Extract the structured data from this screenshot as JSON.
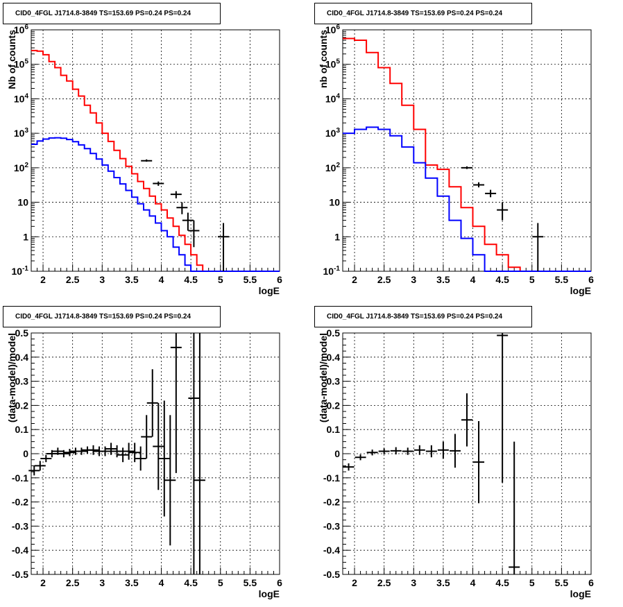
{
  "chart_data": [
    {
      "type": "line",
      "title": "CID0_4FGL J1714.8-3849 TS=153.69 PS=0.24 PS=0.24",
      "xlabel": "logE",
      "ylabel": "Nb of counts",
      "yscale": "log",
      "xlim": [
        1.8,
        6.0
      ],
      "ylim": [
        0.1,
        1000000
      ],
      "grid": true,
      "xticks": [
        "2",
        "2.5",
        "3",
        "3.5",
        "4",
        "4.5",
        "5",
        "5.5",
        "6"
      ],
      "yticks": [
        "10^-1",
        "1",
        "10",
        "10^2",
        "10^3",
        "10^4",
        "10^5",
        "10^6"
      ],
      "bin_edges": [
        1.8,
        1.9,
        2.0,
        2.1,
        2.2,
        2.3,
        2.4,
        2.5,
        2.6,
        2.7,
        2.8,
        2.9,
        3.0,
        3.1,
        3.2,
        3.3,
        3.4,
        3.5,
        3.6,
        3.7,
        3.8,
        3.9,
        4.0,
        4.1,
        4.2,
        4.3,
        4.4,
        4.5,
        4.6,
        4.7,
        4.8,
        4.9,
        5.0,
        5.1,
        5.2,
        5.3,
        5.4,
        5.5,
        5.6,
        5.7,
        5.8,
        5.9,
        6.0
      ],
      "series": [
        {
          "color": "#ff0000",
          "values": [
            250000,
            240000,
            190000,
            120000,
            80000,
            48000,
            33000,
            19000,
            12000,
            6500,
            3900,
            2000,
            1000,
            580,
            320,
            185,
            110,
            67,
            40,
            25,
            15,
            9,
            6,
            3.5,
            2,
            1.1,
            0.6,
            0.3,
            0.15,
            0.1,
            0.1,
            0.1,
            0.1,
            0.1,
            0.1,
            0.1,
            0.1,
            0.1,
            0.1,
            0.1,
            0.1,
            0.1
          ]
        },
        {
          "color": "#0000ff",
          "values": [
            480,
            600,
            680,
            730,
            740,
            720,
            660,
            570,
            460,
            360,
            260,
            180,
            120,
            80,
            52,
            34,
            22,
            14,
            9,
            6,
            4,
            2.5,
            1.5,
            1.0,
            0.5,
            0.3,
            0.15,
            0.1,
            0.1,
            0.1,
            0.1,
            0.1,
            0.1,
            0.1,
            0.1,
            0.1,
            0.1,
            0.1,
            0.1,
            0.1,
            0.1,
            0.1
          ]
        }
      ],
      "points": [
        {
          "x": 3.75,
          "y": 160,
          "lo": 150,
          "hi": 175
        },
        {
          "x": 3.95,
          "y": 35,
          "lo": 30,
          "hi": 40
        },
        {
          "x": 4.25,
          "y": 17,
          "lo": 13,
          "hi": 21
        },
        {
          "x": 4.35,
          "y": 7,
          "lo": 4.5,
          "hi": 10
        },
        {
          "x": 4.45,
          "y": 3,
          "lo": 1.5,
          "hi": 5
        },
        {
          "x": 4.55,
          "y": 1.5,
          "lo": 0.5,
          "hi": 3
        },
        {
          "x": 5.05,
          "y": 1,
          "lo": 0.1,
          "hi": 2.5
        }
      ]
    },
    {
      "type": "line",
      "title": "CID0_4FGL J1714.8-3849 TS=153.69 PS=0.24 PS=0.24",
      "xlabel": "logE",
      "ylabel": "nb of counts",
      "yscale": "log",
      "xlim": [
        1.8,
        6.0
      ],
      "ylim": [
        0.1,
        1000000
      ],
      "grid": true,
      "xticks": [
        "2",
        "2.5",
        "3",
        "3.5",
        "4",
        "4.5",
        "5",
        "5.5",
        "6"
      ],
      "yticks": [
        "10^-1",
        "1",
        "10",
        "10^2",
        "10^3",
        "10^4",
        "10^5",
        "10^6"
      ],
      "bin_edges": [
        1.8,
        2.0,
        2.2,
        2.4,
        2.6,
        2.8,
        3.0,
        3.2,
        3.4,
        3.6,
        3.8,
        4.0,
        4.2,
        4.4,
        4.6,
        4.8,
        5.0,
        5.2,
        5.4,
        5.6,
        5.8,
        6.0
      ],
      "series": [
        {
          "color": "#ff0000",
          "values": [
            560000,
            500000,
            220000,
            80000,
            28000,
            6500,
            1300,
            120,
            90,
            28,
            7,
            2,
            0.6,
            0.3,
            0.13,
            0.1,
            0.1,
            0.1,
            0.1,
            0.1,
            0.1
          ]
        },
        {
          "color": "#0000ff",
          "values": [
            1000,
            1300,
            1500,
            1300,
            850,
            400,
            140,
            50,
            15,
            3,
            0.9,
            0.3,
            0.1,
            0.1,
            0.1,
            0.1,
            0.1,
            0.1,
            0.1,
            0.1,
            0.1
          ]
        }
      ],
      "points": [
        {
          "x": 3.9,
          "y": 100,
          "lo": 92,
          "hi": 110
        },
        {
          "x": 4.1,
          "y": 32,
          "lo": 27,
          "hi": 38
        },
        {
          "x": 4.3,
          "y": 18,
          "lo": 14,
          "hi": 23
        },
        {
          "x": 4.5,
          "y": 6,
          "lo": 3,
          "hi": 10
        },
        {
          "x": 5.1,
          "y": 1,
          "lo": 0.1,
          "hi": 2.5
        }
      ]
    },
    {
      "type": "scatter",
      "title": "CID0_4FGL J1714.8-3849 TS=153.69 PS=0.24 PS=0.24",
      "xlabel": "logE",
      "ylabel": "(data-model)/model",
      "xlim": [
        1.8,
        6.0
      ],
      "ylim": [
        -0.5,
        0.5
      ],
      "grid": true,
      "xticks": [
        "2",
        "2.5",
        "3",
        "3.5",
        "4",
        "4.5",
        "5",
        "5.5",
        "6"
      ],
      "yticks": [
        "-0.5",
        "-0.4",
        "-0.3",
        "-0.2",
        "-0.1",
        "0",
        "0.1",
        "0.2",
        "0.3",
        "0.4",
        "0.5"
      ],
      "points": [
        {
          "x": 1.85,
          "y": -0.07,
          "err": 0.02
        },
        {
          "x": 1.95,
          "y": -0.05,
          "err": 0.02
        },
        {
          "x": 2.05,
          "y": -0.02,
          "err": 0.015
        },
        {
          "x": 2.15,
          "y": 0.0,
          "err": 0.015
        },
        {
          "x": 2.25,
          "y": 0.01,
          "err": 0.015
        },
        {
          "x": 2.35,
          "y": 0.0,
          "err": 0.015
        },
        {
          "x": 2.45,
          "y": 0.005,
          "err": 0.015
        },
        {
          "x": 2.55,
          "y": 0.01,
          "err": 0.015
        },
        {
          "x": 2.65,
          "y": 0.01,
          "err": 0.015
        },
        {
          "x": 2.75,
          "y": 0.015,
          "err": 0.015
        },
        {
          "x": 2.85,
          "y": 0.015,
          "err": 0.02
        },
        {
          "x": 2.95,
          "y": 0.01,
          "err": 0.02
        },
        {
          "x": 3.05,
          "y": 0.01,
          "err": 0.02
        },
        {
          "x": 3.15,
          "y": 0.02,
          "err": 0.025
        },
        {
          "x": 3.25,
          "y": 0.01,
          "err": 0.025
        },
        {
          "x": 3.35,
          "y": -0.005,
          "err": 0.03
        },
        {
          "x": 3.45,
          "y": 0.01,
          "err": 0.035
        },
        {
          "x": 3.55,
          "y": 0.005,
          "err": 0.04
        },
        {
          "x": 3.65,
          "y": -0.02,
          "err": 0.05
        },
        {
          "x": 3.75,
          "y": 0.07,
          "err": 0.09
        },
        {
          "x": 3.85,
          "y": 0.21,
          "err": 0.14
        },
        {
          "x": 3.95,
          "y": 0.03,
          "err": 0.18
        },
        {
          "x": 4.05,
          "y": -0.02,
          "err": 0.24
        },
        {
          "x": 4.15,
          "y": -0.11,
          "err": 0.27
        },
        {
          "x": 4.25,
          "y": 0.44,
          "err": 0.52
        },
        {
          "x": 4.55,
          "y": 0.23,
          "err": 1.0
        },
        {
          "x": 4.65,
          "y": -0.11,
          "err": 1.0
        }
      ]
    },
    {
      "type": "scatter",
      "title": "CID0_4FGL J1714.8-3849 TS=153.69 PS=0.24 PS=0.24",
      "xlabel": "logE",
      "ylabel": "(data-model)/model",
      "xlim": [
        1.8,
        6.0
      ],
      "ylim": [
        -0.5,
        0.5
      ],
      "grid": true,
      "xticks": [
        "2",
        "2.5",
        "3",
        "3.5",
        "4",
        "4.5",
        "5",
        "5.5",
        "6"
      ],
      "yticks": [
        "-0.5",
        "-0.4",
        "-0.3",
        "-0.2",
        "-0.1",
        "0",
        "0.1",
        "0.2",
        "0.3",
        "0.4",
        "0.5"
      ],
      "points": [
        {
          "x": 1.9,
          "y": -0.055,
          "err": 0.015
        },
        {
          "x": 2.1,
          "y": -0.015,
          "err": 0.012
        },
        {
          "x": 2.3,
          "y": 0.005,
          "err": 0.012
        },
        {
          "x": 2.5,
          "y": 0.01,
          "err": 0.012
        },
        {
          "x": 2.7,
          "y": 0.012,
          "err": 0.015
        },
        {
          "x": 2.9,
          "y": 0.01,
          "err": 0.015
        },
        {
          "x": 3.1,
          "y": 0.015,
          "err": 0.02
        },
        {
          "x": 3.3,
          "y": 0.01,
          "err": 0.025
        },
        {
          "x": 3.5,
          "y": 0.015,
          "err": 0.035
        },
        {
          "x": 3.7,
          "y": 0.012,
          "err": 0.07
        },
        {
          "x": 3.9,
          "y": 0.14,
          "err": 0.11
        },
        {
          "x": 4.1,
          "y": -0.035,
          "err": 0.17
        },
        {
          "x": 4.5,
          "y": 0.49,
          "err": 0.61
        },
        {
          "x": 4.7,
          "y": -0.47,
          "err": 0.52
        }
      ]
    }
  ]
}
